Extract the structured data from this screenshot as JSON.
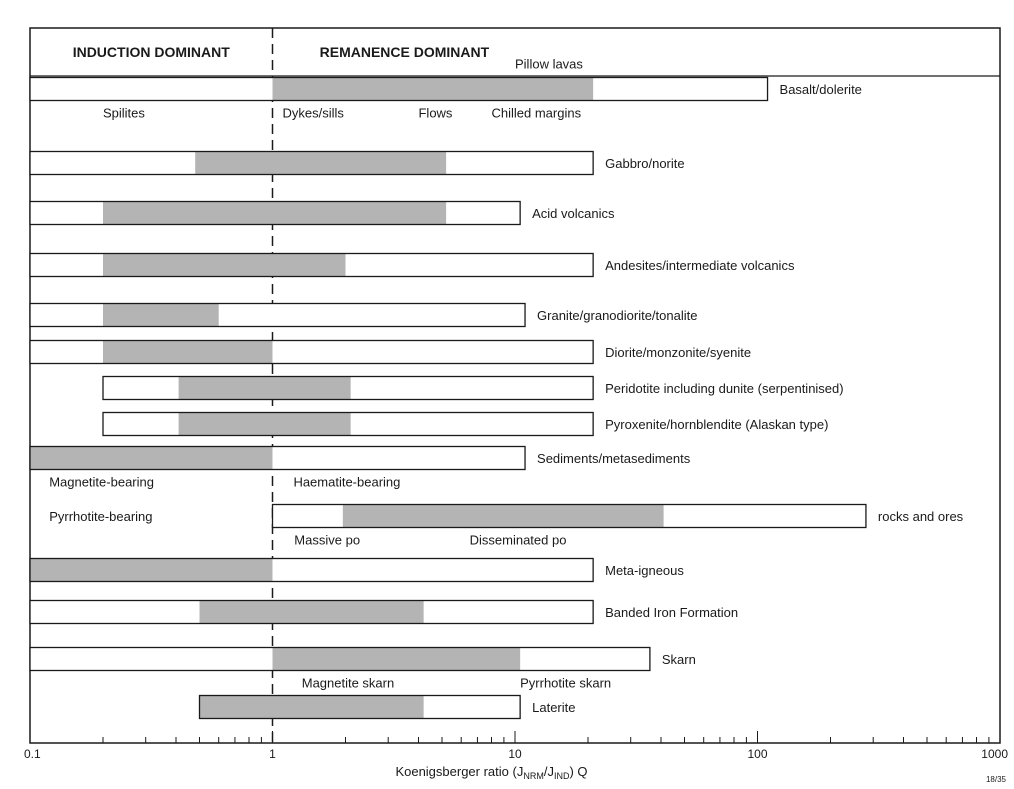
{
  "chart_data": {
    "type": "bar",
    "chart_kind": "range-bar",
    "x_scale": "log",
    "xlim": [
      0.1,
      1000
    ],
    "x_ticks": [
      0.1,
      1,
      10,
      100,
      1000
    ],
    "x_tick_labels": [
      "0.1",
      "1",
      "10",
      "100",
      "1000"
    ],
    "xlabel_main": "Koenigsberger ratio (J",
    "xlabel_sub1": "NRM",
    "xlabel_mid": "/J",
    "xlabel_sub2": "IND",
    "xlabel_end": ")  Q",
    "figure_code": "18/35",
    "reference_line_x": 1,
    "region_left": "INDUCTION DOMINANT",
    "region_right": "REMANENCE DOMINANT",
    "colors": {
      "shaded": "#b4b4b4",
      "outline": "#1a1a1a",
      "background": "#ffffff"
    },
    "series": [
      {
        "name": "Basalt/dolerite",
        "range": [
          0.1,
          110
        ],
        "typical": [
          1,
          21
        ]
      },
      {
        "name": "Gabbro/norite",
        "range": [
          0.1,
          21
        ],
        "typical": [
          0.48,
          5.2
        ]
      },
      {
        "name": "Acid volcanics",
        "range": [
          0.1,
          10.5
        ],
        "typical": [
          0.2,
          5.2
        ]
      },
      {
        "name": "Andesites/intermediate volcanics",
        "range": [
          0.1,
          21
        ],
        "typical": [
          0.2,
          2
        ]
      },
      {
        "name": "Granite/granodiorite/tonalite",
        "range": [
          0.1,
          11
        ],
        "typical": [
          0.2,
          0.6
        ]
      },
      {
        "name": "Diorite/monzonite/syenite",
        "range": [
          0.1,
          21
        ],
        "typical": [
          0.2,
          1
        ]
      },
      {
        "name": "Peridotite including dunite (serpentinised)",
        "range": [
          0.2,
          21
        ],
        "typical": [
          0.41,
          2.1
        ]
      },
      {
        "name": "Pyroxenite/hornblendite (Alaskan type)",
        "range": [
          0.2,
          21
        ],
        "typical": [
          0.41,
          2.1
        ]
      },
      {
        "name": "Sediments/metasediments",
        "range": [
          0.1,
          11
        ],
        "typical": [
          0.1,
          1
        ]
      },
      {
        "name": "rocks and ores",
        "range": [
          1,
          280
        ],
        "typical": [
          1.95,
          41
        ]
      },
      {
        "name": "Meta-igneous",
        "range": [
          0.1,
          21
        ],
        "typical": [
          0.1,
          1
        ]
      },
      {
        "name": "Banded Iron Formation",
        "range": [
          0.1,
          21
        ],
        "typical": [
          0.5,
          4.2
        ]
      },
      {
        "name": "Skarn",
        "range": [
          0.1,
          36
        ],
        "typical": [
          1,
          10.5
        ]
      },
      {
        "name": "Laterite",
        "range": [
          0.5,
          10.5
        ],
        "typical": [
          0.5,
          4.2
        ]
      }
    ],
    "annotations": [
      {
        "text": "Pillow lavas",
        "x": 10,
        "row": 0,
        "pos": "above"
      },
      {
        "text": "Spilites",
        "x": 0.2,
        "row": 0,
        "pos": "below"
      },
      {
        "text": "Dykes/sills",
        "x": 1.1,
        "row": 0,
        "pos": "below"
      },
      {
        "text": "Flows",
        "x": 4.0,
        "row": 0,
        "pos": "below"
      },
      {
        "text": "Chilled margins",
        "x": 8.0,
        "row": 0,
        "pos": "below"
      },
      {
        "text": "Magnetite-bearing",
        "x": 0.12,
        "row": 8,
        "pos": "below"
      },
      {
        "text": "Haematite-bearing",
        "x": 1.22,
        "row": 8,
        "pos": "below"
      },
      {
        "text": "Pyrrhotite-bearing",
        "x": 0.12,
        "row": 9,
        "pos": "left"
      },
      {
        "text": "Massive po",
        "x": 1.23,
        "row": 9,
        "pos": "below"
      },
      {
        "text": "Disseminated po",
        "x": 6.5,
        "row": 9,
        "pos": "below"
      },
      {
        "text": "Magnetite skarn",
        "x": 1.32,
        "row": 12,
        "pos": "below"
      },
      {
        "text": "Pyrrhotite skarn",
        "x": 10.5,
        "row": 12,
        "pos": "below"
      }
    ]
  }
}
